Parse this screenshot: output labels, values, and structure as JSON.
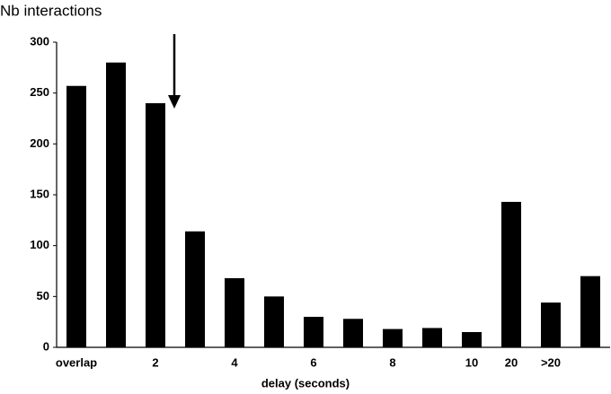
{
  "chart_data": {
    "type": "bar",
    "title": "Nb interactions",
    "x_label": "delay (seconds)",
    "categories": [
      "overlap",
      null,
      "2",
      null,
      "4",
      null,
      "6",
      null,
      "8",
      null,
      "10",
      "20",
      ">20",
      null
    ],
    "values": [
      257,
      280,
      240,
      114,
      68,
      50,
      30,
      28,
      18,
      19,
      15,
      143,
      44,
      70
    ],
    "color": "#000000",
    "ylim": [
      0,
      300
    ],
    "yticks": [
      0,
      50,
      100,
      150,
      200,
      250,
      300
    ],
    "grid": false
  }
}
